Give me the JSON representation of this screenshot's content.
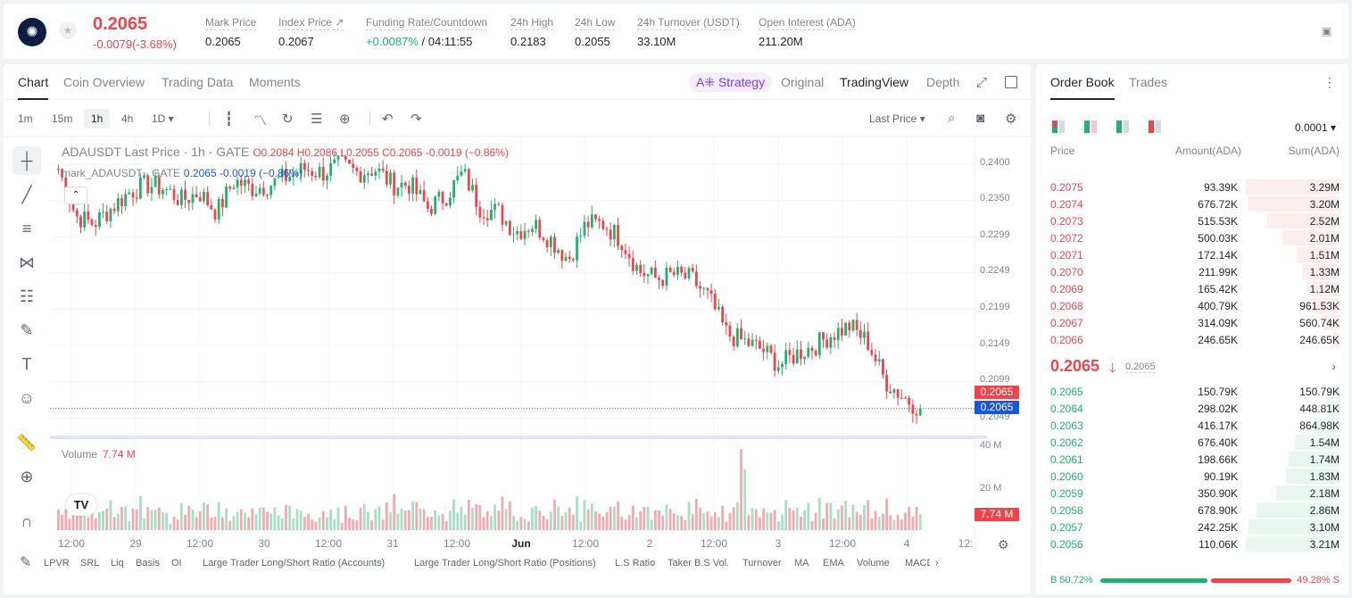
{
  "header": {
    "symbol_icon": "cardano-logo",
    "favorite_icon": "star-icon",
    "last_price": "0.2065",
    "change": "-0.0079(-3.68%)",
    "stats": [
      {
        "label": "Mark Price",
        "value": "0.2065"
      },
      {
        "label": "Index Price ↗",
        "value": "0.2067"
      },
      {
        "label": "Funding Rate/Countdown",
        "value": "+0.0087%",
        "value2": " / 04:11:55"
      },
      {
        "label": "24h High",
        "value": "0.2183"
      },
      {
        "label": "24h Low",
        "value": "0.2055"
      },
      {
        "label": "24h Turnover (USDT)",
        "value": "33.10M"
      },
      {
        "label": "Open Interest (ADA)",
        "value": "211.20M"
      }
    ]
  },
  "chart_tabs": [
    "Chart",
    "Coin Overview",
    "Trading Data",
    "Moments"
  ],
  "strategy_label": "A⁜ Strategy",
  "view_tabs": [
    "Original",
    "TradingView",
    "Depth"
  ],
  "timeframes": [
    "1m",
    "15m",
    "1h",
    "4h",
    "1D ▾"
  ],
  "price_type": "Last Price ▾",
  "legend": {
    "title": "ADAUSDT Last Price · 1h · GATE",
    "ohlc": "O0.2084 H0.2086 L0.2055 C0.2065 -0.0019 (−0.86%)",
    "mark": "mark_ADAUSDT · GATE",
    "mark_vals": "0.2065  -0.0019 (−0.86%)"
  },
  "volume_legend": {
    "label": "Volume",
    "value": "7.74 M"
  },
  "price_tags": {
    "last": "0.2065",
    "mark": "0.2065",
    "volume": "7.74 M"
  },
  "y_axis": [
    "0.2400",
    "0.2350",
    "0.2299",
    "0.2249",
    "0.2199",
    "0.2149",
    "0.2099",
    "0.2049"
  ],
  "vol_axis": [
    "40 M",
    "20 M"
  ],
  "x_axis": [
    "12:00",
    "29",
    "12:00",
    "30",
    "12:00",
    "31",
    "12:00",
    "Jun",
    "12:00",
    "2",
    "12:00",
    "3",
    "12:00",
    "4",
    "12:"
  ],
  "indicators": [
    "LPVR",
    "SRL",
    "Liq",
    "Basis",
    "OI",
    "Large Trader Long/Short Ratio (Accounts)",
    "Large Trader Long/Short Ratio (Positions)",
    "L.S Ratio",
    "Taker B.S Vol.",
    "Turnover",
    "MA",
    "EMA",
    "Volume",
    "MACD"
  ],
  "chart_data": {
    "type": "candlestick",
    "symbol": "ADAUSDT",
    "interval": "1h",
    "ylim": [
      0.2035,
      0.241
    ],
    "x_ticks": [
      "12:00",
      "29",
      "12:00",
      "30",
      "12:00",
      "31",
      "12:00",
      "Jun",
      "12:00",
      "2",
      "12:00",
      "3",
      "12:00",
      "4"
    ],
    "close_trend": [
      0.237,
      0.231,
      0.23,
      0.232,
      0.234,
      0.235,
      0.2345,
      0.233,
      0.234,
      0.2315,
      0.2355,
      0.2345,
      0.235,
      0.236,
      0.237,
      0.2365,
      0.2375,
      0.2365,
      0.237,
      0.235,
      0.235,
      0.232,
      0.2335,
      0.2365,
      0.232,
      0.2315,
      0.229,
      0.23,
      0.228,
      0.2255,
      0.23,
      0.23,
      0.228,
      0.224,
      0.223,
      0.2235,
      0.223,
      0.2205,
      0.216,
      0.215,
      0.214,
      0.212,
      0.2135,
      0.2145,
      0.216,
      0.217,
      0.215,
      0.21,
      0.208,
      0.2065
    ],
    "last_price": 0.2065,
    "volume_max": 40,
    "volume_last": 7.74
  },
  "orderbook": {
    "tabs": [
      "Order Book",
      "Trades"
    ],
    "precision": "0.0001 ▾",
    "headers": [
      "Price",
      "Amount(ADA)",
      "Sum(ADA)"
    ],
    "asks": [
      {
        "p": "0.2075",
        "a": "93.39K",
        "s": "3.29M",
        "d": 1.0
      },
      {
        "p": "0.2074",
        "a": "676.72K",
        "s": "3.20M",
        "d": 0.97
      },
      {
        "p": "0.2073",
        "a": "515.53K",
        "s": "2.52M",
        "d": 0.77
      },
      {
        "p": "0.2072",
        "a": "500.03K",
        "s": "2.01M",
        "d": 0.61
      },
      {
        "p": "0.2071",
        "a": "172.14K",
        "s": "1.51M",
        "d": 0.46
      },
      {
        "p": "0.2070",
        "a": "211.99K",
        "s": "1.33M",
        "d": 0.4
      },
      {
        "p": "0.2069",
        "a": "165.42K",
        "s": "1.12M",
        "d": 0.34
      },
      {
        "p": "0.2068",
        "a": "400.79K",
        "s": "961.53K",
        "d": 0.29
      },
      {
        "p": "0.2067",
        "a": "314.09K",
        "s": "560.74K",
        "d": 0.17
      },
      {
        "p": "0.2066",
        "a": "246.65K",
        "s": "246.65K",
        "d": 0.07
      }
    ],
    "mid_price": "0.2065",
    "mid_arrow": "🡓",
    "mark_price": "0.2065",
    "bids": [
      {
        "p": "0.2065",
        "a": "150.79K",
        "s": "150.79K",
        "d": 0.05
      },
      {
        "p": "0.2064",
        "a": "298.02K",
        "s": "448.81K",
        "d": 0.14
      },
      {
        "p": "0.2063",
        "a": "416.17K",
        "s": "864.98K",
        "d": 0.27
      },
      {
        "p": "0.2062",
        "a": "676.40K",
        "s": "1.54M",
        "d": 0.48
      },
      {
        "p": "0.2061",
        "a": "198.66K",
        "s": "1.74M",
        "d": 0.54
      },
      {
        "p": "0.2060",
        "a": "90.19K",
        "s": "1.83M",
        "d": 0.57
      },
      {
        "p": "0.2059",
        "a": "350.90K",
        "s": "2.18M",
        "d": 0.68
      },
      {
        "p": "0.2058",
        "a": "678.90K",
        "s": "2.86M",
        "d": 0.89
      },
      {
        "p": "0.2057",
        "a": "242.25K",
        "s": "3.10M",
        "d": 0.97
      },
      {
        "p": "0.2056",
        "a": "110.06K",
        "s": "3.21M",
        "d": 1.0
      }
    ],
    "buy_ratio": "B 50.72%",
    "sell_ratio": "49.28% S"
  },
  "colors": {
    "up": "#20b26c",
    "down": "#ef454a",
    "mark": "#1a56db",
    "accent": "#7a3cff"
  }
}
